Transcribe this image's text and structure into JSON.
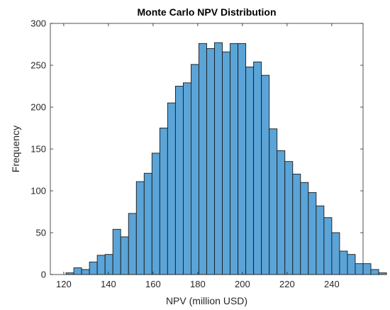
{
  "chart_data": {
    "type": "bar",
    "title": "Monte Carlo NPV Distribution",
    "xlabel": "NPV (million USD)",
    "ylabel": "Frequency",
    "xlim": [
      114,
      254
    ],
    "ylim": [
      0,
      300
    ],
    "xticks": [
      120,
      140,
      160,
      180,
      200,
      220,
      240
    ],
    "yticks": [
      0,
      50,
      100,
      150,
      200,
      250,
      300
    ],
    "bin_width": 3.5,
    "bin_start": 121,
    "values": [
      2,
      8,
      6,
      15,
      23,
      24,
      54,
      45,
      73,
      111,
      121,
      145,
      175,
      205,
      225,
      229,
      251,
      276,
      270,
      277,
      266,
      276,
      276,
      248,
      254,
      238,
      174,
      148,
      135,
      120,
      110,
      98,
      82,
      68,
      50,
      28,
      24,
      13,
      13,
      6,
      2
    ],
    "grid": false,
    "legend": false,
    "bar_color": "#5ba4d7",
    "edge_color": "#1a1a1a"
  }
}
